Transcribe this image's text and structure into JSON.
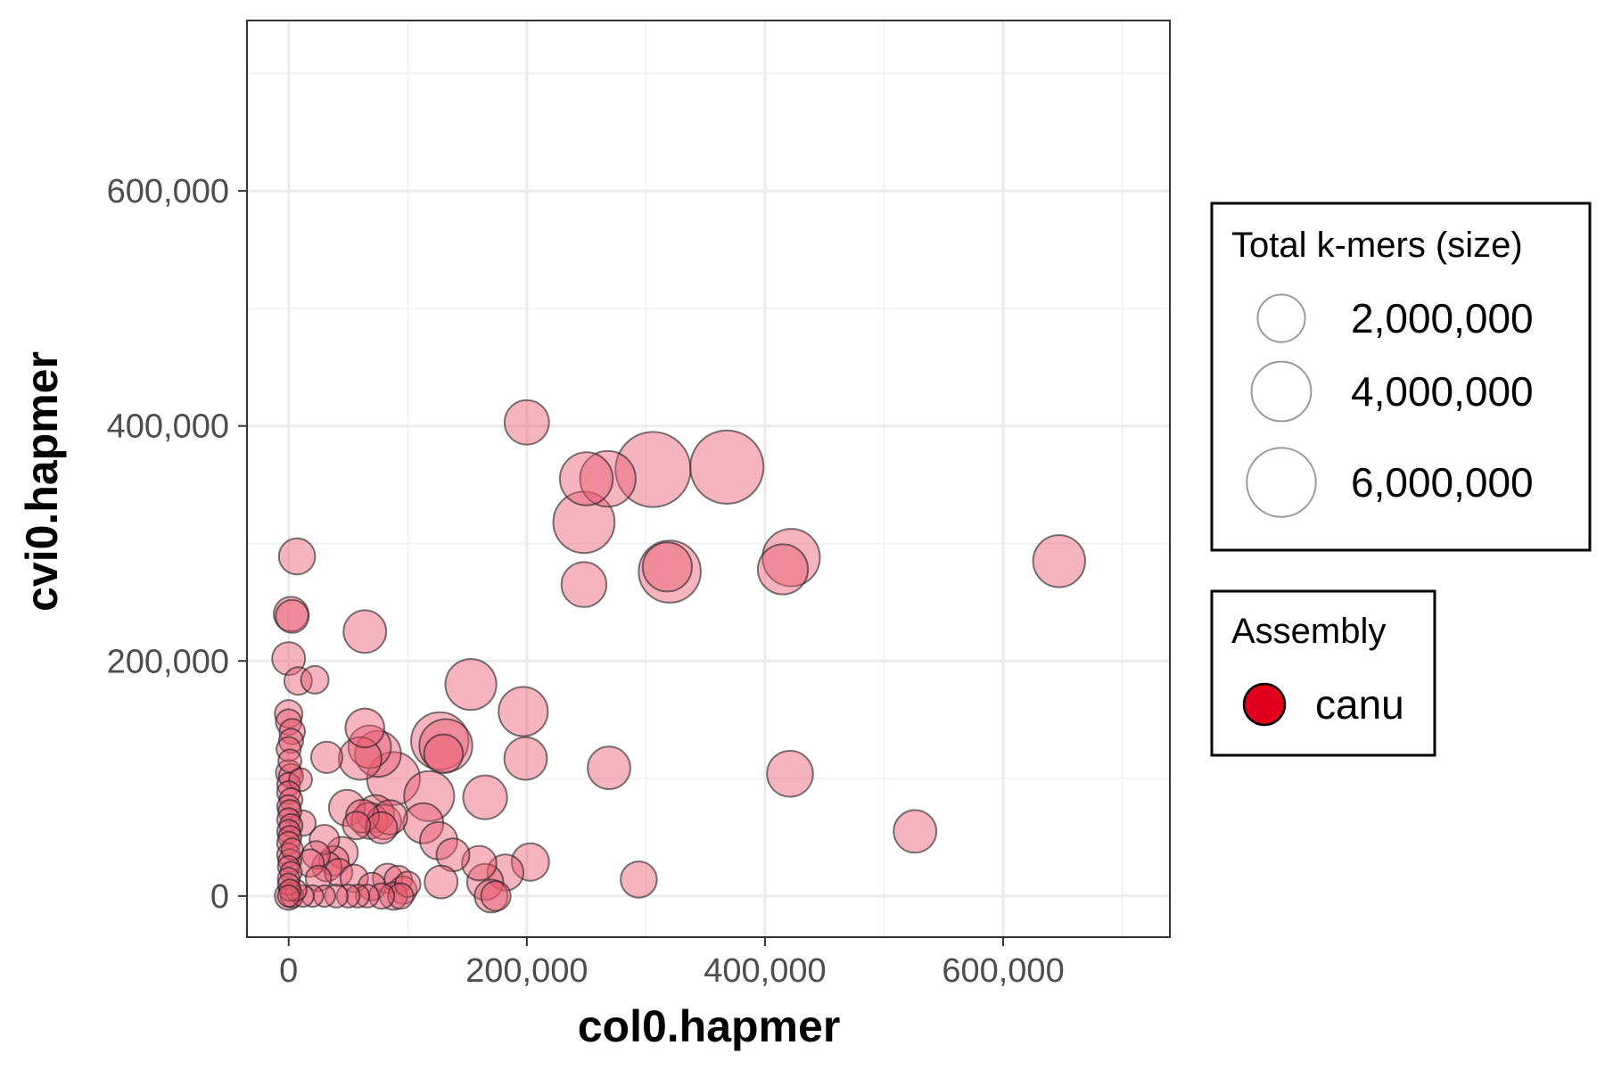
{
  "chart_data": {
    "type": "scatter",
    "title": "",
    "xlabel": "col0.hapmer",
    "ylabel": "cvi0.hapmer",
    "xlim": [
      -35000,
      740000
    ],
    "ylim": [
      -35000,
      745000
    ],
    "x_ticks": [
      0,
      200000,
      400000,
      600000
    ],
    "x_tick_labels": [
      "0",
      "200,000",
      "400,000",
      "600,000"
    ],
    "y_ticks": [
      0,
      200000,
      400000,
      600000
    ],
    "y_tick_labels": [
      "0",
      "200,000",
      "400,000",
      "600,000"
    ],
    "grid": true,
    "colors": {
      "fill": "#e8596f",
      "edge": "#222222",
      "accent": "#e0001b"
    },
    "size_legend": {
      "title": "Total k-mers (size)",
      "entries": [
        {
          "value": 2000000,
          "label": "2,000,000"
        },
        {
          "value": 4000000,
          "label": "4,000,000"
        },
        {
          "value": 6000000,
          "label": "6,000,000"
        }
      ]
    },
    "color_legend": {
      "title": "Assembly",
      "entries": [
        {
          "label": "canu",
          "color": "#e0001b"
        }
      ]
    },
    "series": [
      {
        "name": "canu",
        "points": [
          [
            200000,
            403000,
            1650000
          ],
          [
            250000,
            355000,
            2500000
          ],
          [
            268000,
            355000,
            2800000
          ],
          [
            306000,
            363000,
            5500000
          ],
          [
            368000,
            365000,
            5200000
          ],
          [
            248000,
            318000,
            3500000
          ],
          [
            320000,
            276000,
            3600000
          ],
          [
            318000,
            280000,
            2100000
          ],
          [
            422000,
            288000,
            3000000
          ],
          [
            415000,
            278000,
            2200000
          ],
          [
            647000,
            285000,
            2400000
          ],
          [
            248000,
            265000,
            1700000
          ],
          [
            7000,
            289000,
            1000000
          ],
          [
            2000,
            240000,
            900000
          ],
          [
            3000,
            238000,
            800000
          ],
          [
            64000,
            225000,
            1500000
          ],
          [
            0,
            202000,
            800000
          ],
          [
            153000,
            180000,
            2300000
          ],
          [
            197000,
            157000,
            2100000
          ],
          [
            8000,
            183000,
            500000
          ],
          [
            22000,
            184000,
            500000
          ],
          [
            269000,
            109000,
            1500000
          ],
          [
            199000,
            117000,
            1500000
          ],
          [
            421000,
            104000,
            1800000
          ],
          [
            526000,
            55000,
            1500000
          ],
          [
            64000,
            143000,
            1200000
          ],
          [
            68000,
            127000,
            1500000
          ],
          [
            75000,
            121000,
            1800000
          ],
          [
            60000,
            117000,
            1500000
          ],
          [
            32000,
            118000,
            700000
          ],
          [
            127000,
            132000,
            3000000
          ],
          [
            132000,
            128000,
            2500000
          ],
          [
            130000,
            121000,
            1200000
          ],
          [
            88000,
            100000,
            2500000
          ],
          [
            118000,
            85000,
            2200000
          ],
          [
            165000,
            84000,
            1600000
          ],
          [
            49000,
            75000,
            1000000
          ],
          [
            113000,
            62000,
            1300000
          ],
          [
            126000,
            47000,
            1100000
          ],
          [
            138000,
            35000,
            800000
          ],
          [
            160000,
            28000,
            900000
          ],
          [
            203000,
            29000,
            1100000
          ],
          [
            182000,
            20000,
            1000000
          ],
          [
            165000,
            12000,
            1000000
          ],
          [
            128000,
            12000,
            800000
          ],
          [
            294000,
            14000,
            1000000
          ],
          [
            170000,
            0,
            800000
          ],
          [
            174000,
            0,
            600000
          ],
          [
            68000,
            64000,
            1000000
          ],
          [
            73000,
            70000,
            1100000
          ],
          [
            62000,
            68000,
            800000
          ],
          [
            80000,
            63000,
            900000
          ],
          [
            78000,
            58000,
            700000
          ],
          [
            85000,
            67000,
            900000
          ],
          [
            57000,
            60000,
            500000
          ],
          [
            45000,
            37000,
            700000
          ],
          [
            38000,
            30000,
            600000
          ],
          [
            32000,
            25000,
            600000
          ],
          [
            23000,
            35000,
            500000
          ],
          [
            18000,
            28000,
            500000
          ],
          [
            30000,
            48000,
            600000
          ],
          [
            42000,
            20000,
            500000
          ],
          [
            25000,
            15000,
            400000
          ],
          [
            55000,
            15000,
            500000
          ],
          [
            70000,
            8000,
            500000
          ],
          [
            83000,
            15000,
            600000
          ],
          [
            92000,
            14000,
            500000
          ],
          [
            96000,
            5000,
            500000
          ],
          [
            100000,
            10000,
            400000
          ],
          [
            88000,
            0,
            500000
          ],
          [
            94000,
            0,
            400000
          ],
          [
            78000,
            0,
            400000
          ],
          [
            66000,
            0,
            300000
          ],
          [
            58000,
            0,
            300000
          ],
          [
            50000,
            0,
            300000
          ],
          [
            40000,
            0,
            300000
          ],
          [
            30000,
            0,
            250000
          ],
          [
            20000,
            0,
            250000
          ],
          [
            12000,
            0,
            250000
          ],
          [
            6000,
            5000,
            250000
          ],
          [
            0,
            155000,
            500000
          ],
          [
            0,
            148000,
            400000
          ],
          [
            3000,
            140000,
            400000
          ],
          [
            2000,
            132000,
            350000
          ],
          [
            0,
            125000,
            350000
          ],
          [
            1000,
            115000,
            300000
          ],
          [
            0,
            105000,
            400000
          ],
          [
            2000,
            102000,
            350000
          ],
          [
            0,
            95000,
            300000
          ],
          [
            10000,
            99000,
            300000
          ],
          [
            0,
            88000,
            300000
          ],
          [
            2000,
            82000,
            300000
          ],
          [
            0,
            76000,
            300000
          ],
          [
            1000,
            72000,
            300000
          ],
          [
            0,
            65000,
            300000
          ],
          [
            2000,
            60000,
            300000
          ],
          [
            0,
            55000,
            300000
          ],
          [
            1000,
            50000,
            300000
          ],
          [
            0,
            45000,
            300000
          ],
          [
            3000,
            40000,
            250000
          ],
          [
            0,
            35000,
            300000
          ],
          [
            1000,
            30000,
            300000
          ],
          [
            0,
            25000,
            250000
          ],
          [
            2000,
            20000,
            250000
          ],
          [
            0,
            15000,
            250000
          ],
          [
            0,
            10000,
            250000
          ],
          [
            1000,
            5000,
            250000
          ],
          [
            0,
            0,
            500000
          ],
          [
            3000,
            0,
            300000
          ],
          [
            0,
            0,
            250000
          ],
          [
            12000,
            62000,
            400000
          ]
        ]
      }
    ]
  }
}
